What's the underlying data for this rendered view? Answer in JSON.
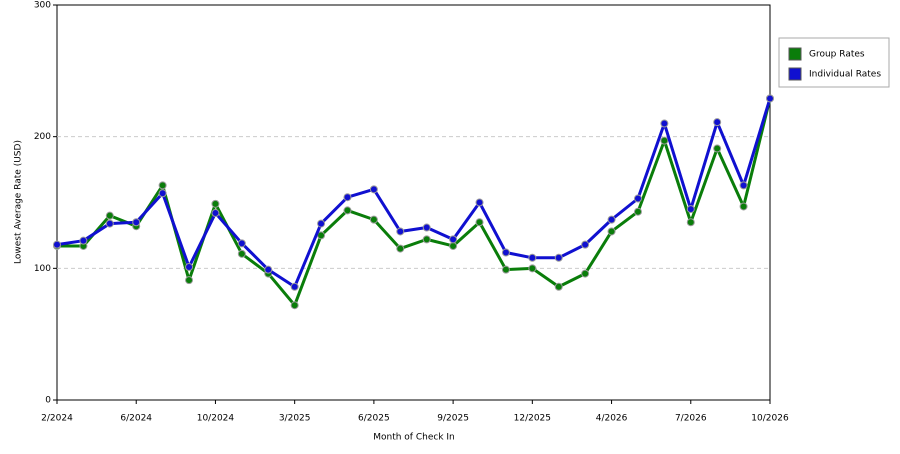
{
  "chart_data": {
    "type": "line",
    "x_label": "Month of Check In",
    "y_label": "Lowest Average Rate (USD)",
    "categories": [
      "2/2024",
      null,
      null,
      "6/2024",
      null,
      null,
      "10/2024",
      null,
      null,
      "3/2025",
      null,
      null,
      "6/2025",
      null,
      null,
      "9/2025",
      null,
      null,
      "12/2025",
      null,
      null,
      "4/2026",
      null,
      null,
      "7/2026",
      null,
      null,
      "10/2026"
    ],
    "series": [
      {
        "name": "Group Rates",
        "color": "#0a7d0a",
        "values": [
          117,
          117,
          140,
          132,
          163,
          91,
          149,
          111,
          96,
          72,
          125,
          144,
          137,
          115,
          122,
          117,
          135,
          99,
          100,
          86,
          96,
          128,
          143,
          197,
          135,
          191,
          147,
          229
        ]
      },
      {
        "name": "Individual Rates",
        "color": "#1010d0",
        "values": [
          118,
          121,
          134,
          135,
          157,
          101,
          142,
          119,
          99,
          86,
          134,
          154,
          160,
          128,
          131,
          122,
          150,
          112,
          108,
          108,
          118,
          137,
          153,
          210,
          145,
          211,
          163,
          229
        ]
      }
    ],
    "ylim": [
      0,
      300
    ],
    "yticks": [
      0,
      100,
      200,
      300
    ],
    "grid": true,
    "legend": "right"
  }
}
